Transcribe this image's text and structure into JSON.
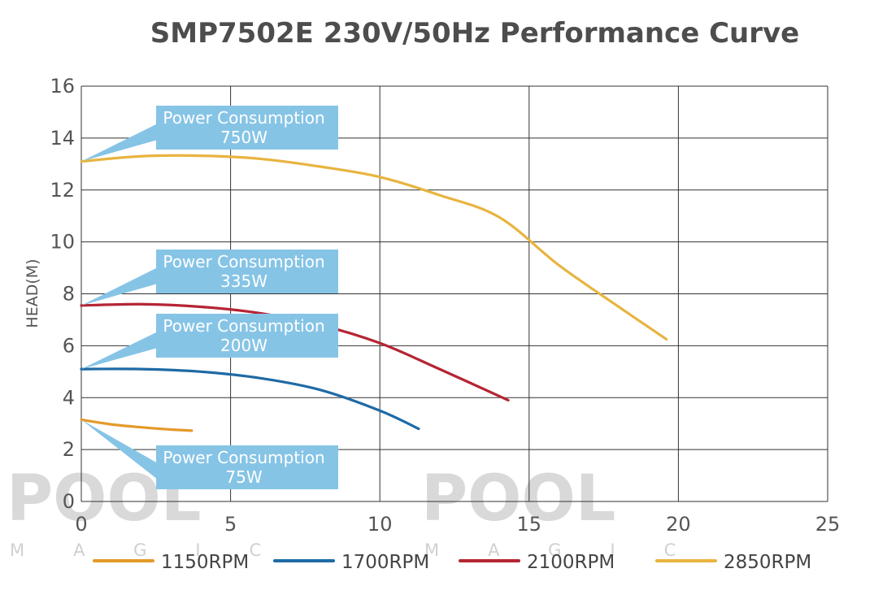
{
  "chart_data": {
    "type": "line",
    "title": "SMP7502E 230V/50Hz Performance Curve",
    "xlabel": "",
    "ylabel": "HEAD(M)",
    "xlim": [
      0,
      25
    ],
    "ylim": [
      0,
      16
    ],
    "xticks": [
      0,
      5,
      10,
      15,
      20,
      25
    ],
    "yticks": [
      0,
      2,
      4,
      6,
      8,
      10,
      12,
      14,
      16
    ],
    "grid": true,
    "legend_position": "bottom",
    "series": [
      {
        "name": "1150RPM",
        "color": "#e49a2a",
        "x": [
          0,
          1,
          2,
          3,
          3.7
        ],
        "y": [
          3.15,
          2.97,
          2.86,
          2.77,
          2.73
        ],
        "callout": {
          "line1": "Power Consumption",
          "line2": "75W"
        }
      },
      {
        "name": "1700RPM",
        "color": "#1f6aa5",
        "x": [
          0,
          2,
          4,
          6,
          8,
          10,
          11.3
        ],
        "y": [
          5.1,
          5.1,
          5.0,
          4.75,
          4.3,
          3.5,
          2.8
        ],
        "callout": {
          "line1": "Power Consumption",
          "line2": "200W"
        }
      },
      {
        "name": "2100RPM",
        "color": "#b52534",
        "x": [
          0,
          2,
          4,
          6,
          8,
          10,
          12,
          14.3
        ],
        "y": [
          7.55,
          7.6,
          7.5,
          7.25,
          6.8,
          6.1,
          5.1,
          3.9
        ],
        "callout": {
          "line1": "Power Consumption",
          "line2": "335W"
        }
      },
      {
        "name": "2850RPM",
        "color": "#e8b440",
        "x": [
          0,
          2,
          4,
          6,
          8,
          10,
          12,
          14,
          16,
          18,
          19.6
        ],
        "y": [
          13.1,
          13.3,
          13.32,
          13.2,
          12.9,
          12.5,
          11.8,
          10.95,
          9.1,
          7.5,
          6.25
        ],
        "callout": {
          "line1": "Power Consumption",
          "line2": "750W"
        }
      }
    ]
  },
  "callout_color": "#86c4e6",
  "watermark": {
    "main": "POOL",
    "sub": "MAGIC"
  }
}
